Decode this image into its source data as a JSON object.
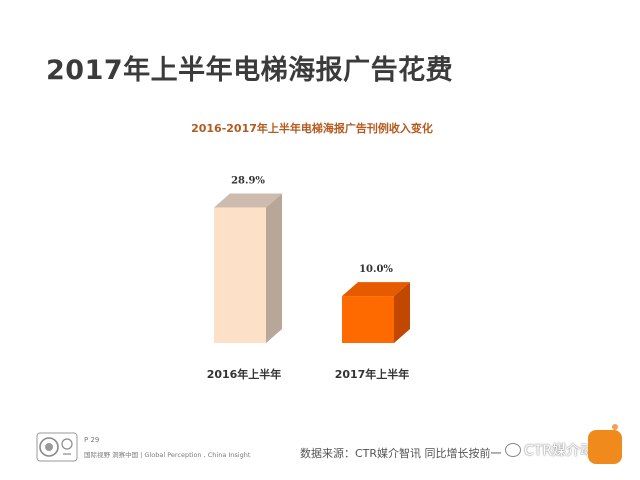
{
  "page": {
    "title": "2017年上半年电梯海报广告花费"
  },
  "chart_data": {
    "type": "bar",
    "title": "2016-2017年上半年电梯海报广告刊例收入变化",
    "categories": [
      "2016年上半年",
      "2017年上半年"
    ],
    "values": [
      28.9,
      10.0
    ],
    "value_labels": [
      "28.9%",
      "10.0%"
    ],
    "ylim": [
      0,
      30
    ],
    "xlabel": "",
    "ylabel": "",
    "grid": false,
    "legend": "none",
    "bar_colors": [
      {
        "front": "#fde0c8",
        "side": "#b8a698",
        "top": "#cdbcae"
      },
      {
        "front": "#ff6a00",
        "side": "#c24700",
        "top": "#e65a00"
      }
    ]
  },
  "footer": {
    "page_number": "P 29",
    "tagline": "国际视野  洞察中国 |  Global Perception , China  Insight",
    "source": "数据来源：CTR媒介智讯    同比增长按前一",
    "watermark": "CTR媒介动量"
  },
  "colors": {
    "title": "#3b3b3b",
    "chart_title": "#b45a1e",
    "logo": "#f08a1c"
  }
}
